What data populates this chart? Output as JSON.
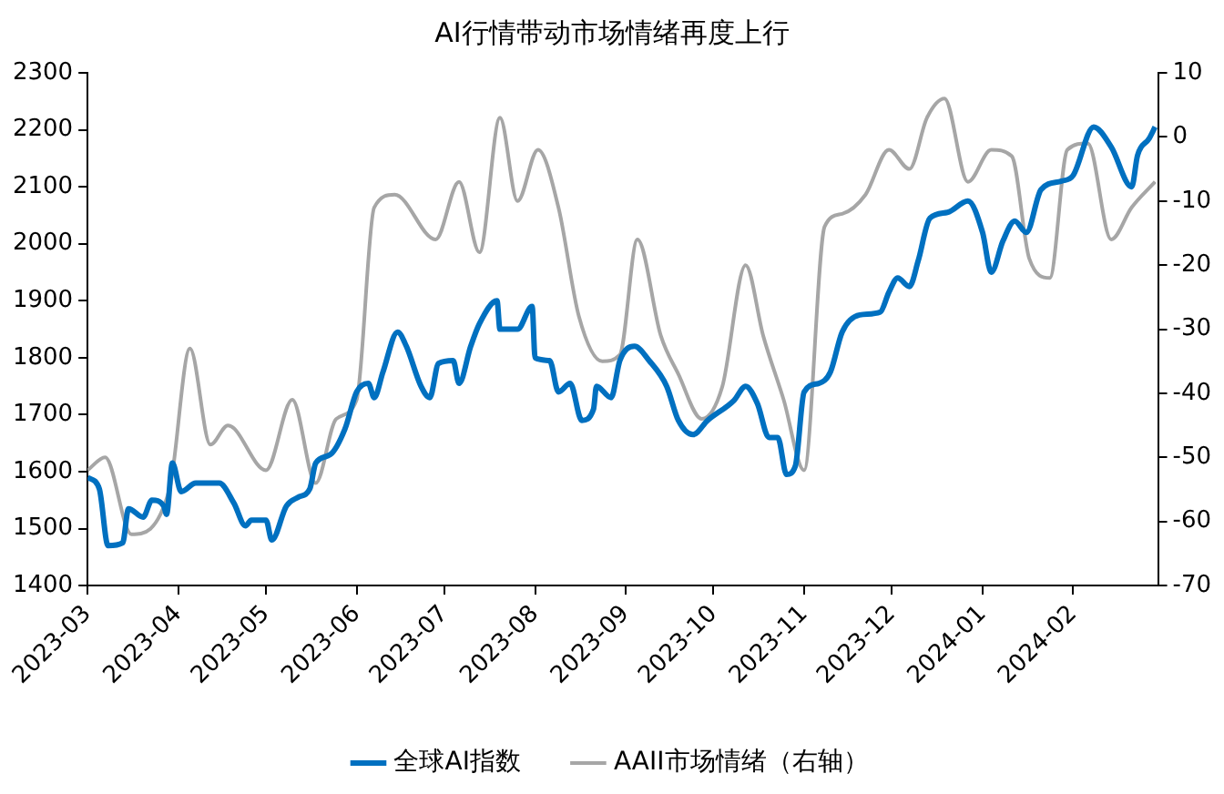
{
  "chart_data": {
    "type": "line",
    "title": "AI行情带动市场情绪再度上行",
    "xlim": [
      "2023-03",
      "2024-03"
    ],
    "xticks": [
      "2023-03",
      "2023-04",
      "2023-05",
      "2023-06",
      "2023-07",
      "2023-08",
      "2023-09",
      "2023-10",
      "2023-11",
      "2023-12",
      "2024-01",
      "2024-02"
    ],
    "ylim": [
      1400,
      2300
    ],
    "yticks": [
      1400,
      1500,
      1600,
      1700,
      1800,
      1900,
      2000,
      2100,
      2200,
      2300
    ],
    "y2lim": [
      -70,
      10
    ],
    "y2ticks": [
      -70,
      -60,
      -50,
      -40,
      -30,
      -20,
      -10,
      0,
      10
    ],
    "grid": false,
    "legend": "bottom",
    "marker": "none",
    "series": [
      {
        "name": "全球AI指数",
        "color": "#0070c0",
        "x": [
          "2023-03-01",
          "2023-03-05",
          "2023-03-08",
          "2023-03-13",
          "2023-03-15",
          "2023-03-20",
          "2023-03-23",
          "2023-03-27",
          "2023-03-28",
          "2023-03-30",
          "2023-04-02",
          "2023-04-07",
          "2023-04-11",
          "2023-04-15",
          "2023-04-20",
          "2023-04-24",
          "2023-04-26",
          "2023-05-01",
          "2023-05-03",
          "2023-05-08",
          "2023-05-12",
          "2023-05-16",
          "2023-05-18",
          "2023-05-23",
          "2023-05-28",
          "2023-06-01",
          "2023-06-05",
          "2023-06-07",
          "2023-06-10",
          "2023-06-15",
          "2023-06-18",
          "2023-06-23",
          "2023-06-26",
          "2023-06-29",
          "2023-07-04",
          "2023-07-06",
          "2023-07-10",
          "2023-07-13",
          "2023-07-19",
          "2023-07-20",
          "2023-07-26",
          "2023-07-31",
          "2023-08-01",
          "2023-08-06",
          "2023-08-09",
          "2023-08-13",
          "2023-08-17",
          "2023-08-21",
          "2023-08-22",
          "2023-08-27",
          "2023-08-30",
          "2023-09-04",
          "2023-09-09",
          "2023-09-15",
          "2023-09-19",
          "2023-09-24",
          "2023-09-29",
          "2023-10-08",
          "2023-10-12",
          "2023-10-16",
          "2023-10-20",
          "2023-10-23",
          "2023-10-26",
          "2023-10-29",
          "2023-11-01",
          "2023-11-06",
          "2023-11-10",
          "2023-11-14",
          "2023-11-20",
          "2023-11-27",
          "2023-11-30",
          "2023-12-03",
          "2023-12-07",
          "2023-12-10",
          "2023-12-14",
          "2023-12-20",
          "2023-12-27",
          "2024-01-01",
          "2024-01-04",
          "2024-01-08",
          "2024-01-12",
          "2024-01-16",
          "2024-01-21",
          "2024-01-28",
          "2024-02-01",
          "2024-02-08",
          "2024-02-14",
          "2024-02-21",
          "2024-02-23",
          "2024-02-27",
          "2024-02-29"
        ],
        "values": [
          1590,
          1570,
          1470,
          1475,
          1535,
          1520,
          1550,
          1540,
          1525,
          1615,
          1565,
          1580,
          1580,
          1580,
          1545,
          1505,
          1515,
          1515,
          1480,
          1540,
          1555,
          1570,
          1615,
          1630,
          1675,
          1740,
          1755,
          1730,
          1775,
          1845,
          1820,
          1750,
          1730,
          1790,
          1795,
          1755,
          1820,
          1860,
          1900,
          1850,
          1850,
          1890,
          1800,
          1795,
          1740,
          1755,
          1690,
          1710,
          1750,
          1730,
          1795,
          1820,
          1795,
          1750,
          1690,
          1665,
          1690,
          1725,
          1750,
          1720,
          1660,
          1660,
          1595,
          1610,
          1740,
          1755,
          1775,
          1845,
          1875,
          1880,
          1915,
          1940,
          1925,
          1970,
          2045,
          2055,
          2075,
          2020,
          1950,
          2005,
          2040,
          2020,
          2095,
          2110,
          2120,
          2205,
          2170,
          2100,
          2155,
          2185,
          2205
        ]
      },
      {
        "name": "AAII市场情绪（右轴）",
        "color": "#a6a6a6",
        "axis": "y2",
        "x": [
          "2023-03-01",
          "2023-03-07",
          "2023-03-16",
          "2023-03-29",
          "2023-04-05",
          "2023-04-12",
          "2023-04-18",
          "2023-05-01",
          "2023-05-10",
          "2023-05-18",
          "2023-05-25",
          "2023-06-01",
          "2023-06-07",
          "2023-06-14",
          "2023-06-28",
          "2023-07-06",
          "2023-07-13",
          "2023-07-20",
          "2023-07-26",
          "2023-08-02",
          "2023-08-09",
          "2023-08-16",
          "2023-08-24",
          "2023-08-30",
          "2023-09-05",
          "2023-09-13",
          "2023-09-19",
          "2023-09-27",
          "2023-10-04",
          "2023-10-12",
          "2023-10-18",
          "2023-10-25",
          "2023-11-01",
          "2023-11-08",
          "2023-11-14",
          "2023-11-22",
          "2023-11-30",
          "2023-12-07",
          "2023-12-13",
          "2023-12-19",
          "2023-12-27",
          "2024-01-04",
          "2024-01-11",
          "2024-01-17",
          "2024-01-24",
          "2024-01-30",
          "2024-02-06",
          "2024-02-14",
          "2024-02-21",
          "2024-02-29"
        ],
        "values": [
          -52,
          -50,
          -62,
          -55,
          -33,
          -48,
          -45,
          -52,
          -41,
          -54,
          -44,
          -41,
          -11,
          -9,
          -16,
          -7,
          -18,
          3,
          -10,
          -2,
          -11,
          -28,
          -35,
          -34,
          -16,
          -31,
          -37,
          -44,
          -39,
          -20,
          -31,
          -41,
          -52,
          -14,
          -12,
          -9,
          -2,
          -5,
          3,
          6,
          -7,
          -2,
          -3,
          -19,
          -22,
          -2,
          -1,
          -16,
          -11,
          -7
        ]
      }
    ]
  }
}
